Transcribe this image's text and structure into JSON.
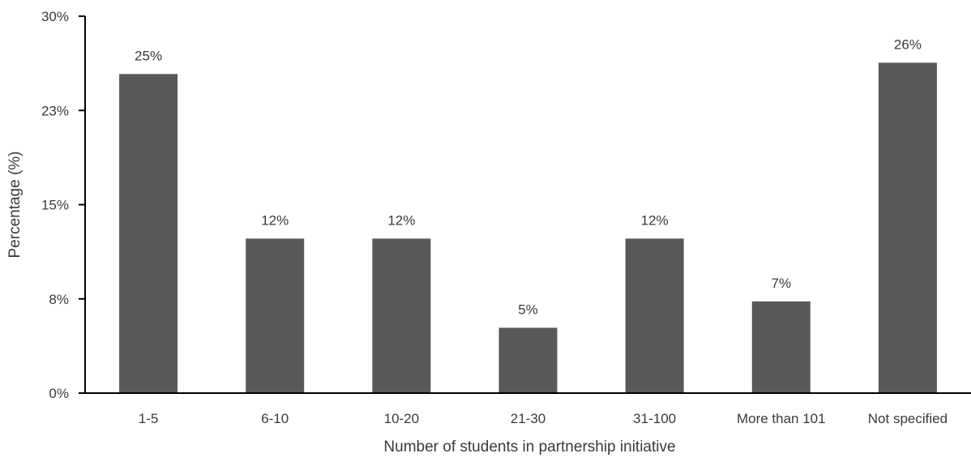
{
  "chart_data": {
    "type": "bar",
    "categories": [
      "1-5",
      "6-10",
      "10-20",
      "21-30",
      "31-100",
      "More than 101",
      "Not specified"
    ],
    "values": [
      25.4,
      12.3,
      12.3,
      5.2,
      12.3,
      7.3,
      26.3
    ],
    "data_labels": [
      "25%",
      "12%",
      "12%",
      "5%",
      "12%",
      "7%",
      "26%"
    ],
    "xlabel": "Number of students in partnership initiative",
    "ylabel": "Percentage (%)",
    "ylim": [
      0,
      30
    ],
    "y_ticks": [
      0,
      7.5,
      15,
      22.5,
      30
    ],
    "y_tick_labels": [
      "0%",
      "8%",
      "15%",
      "23%",
      "30%"
    ],
    "grid": false,
    "legend": "none",
    "bar_color": "#595959",
    "axis_color": "#000000",
    "text_color": "#3a3a3a"
  }
}
